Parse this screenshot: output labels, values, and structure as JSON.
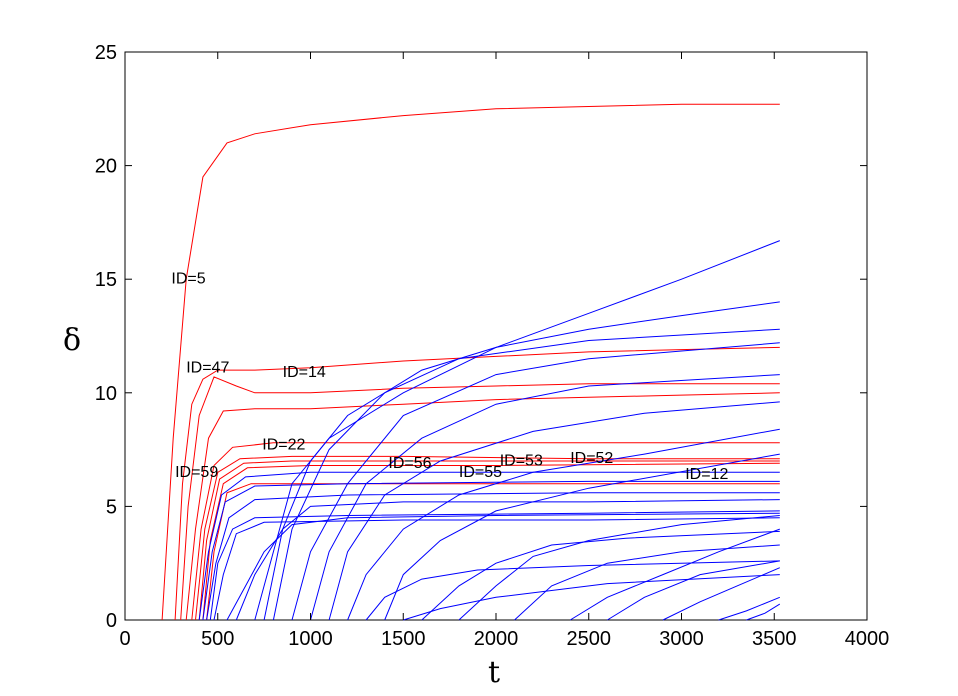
{
  "chart_data": {
    "type": "line",
    "xlabel": "t",
    "ylabel": "δ",
    "xlim": [
      0,
      4000
    ],
    "ylim": [
      0,
      25
    ],
    "xticks": [
      0,
      500,
      1000,
      1500,
      2000,
      2500,
      3000,
      3500,
      4000
    ],
    "yticks": [
      0,
      5,
      10,
      15,
      20,
      25
    ],
    "grid": false,
    "legend": "none",
    "colors": {
      "unstable": "#ff0000",
      "stable": "#0000ff"
    },
    "annotations": [
      {
        "text": "ID=5",
        "x": 250,
        "y": 14.8
      },
      {
        "text": "ID=47",
        "x": 330,
        "y": 10.9
      },
      {
        "text": "ID=14",
        "x": 850,
        "y": 10.7
      },
      {
        "text": "ID=22",
        "x": 740,
        "y": 7.5
      },
      {
        "text": "ID=59",
        "x": 270,
        "y": 6.3
      },
      {
        "text": "ID=56",
        "x": 1420,
        "y": 6.7
      },
      {
        "text": "ID=55",
        "x": 1800,
        "y": 6.3
      },
      {
        "text": "ID=53",
        "x": 2020,
        "y": 6.8
      },
      {
        "text": "ID=52",
        "x": 2400,
        "y": 6.9
      },
      {
        "text": "ID=12",
        "x": 3020,
        "y": 6.2
      }
    ],
    "series": [
      {
        "color": "red",
        "points": [
          [
            200,
            0
          ],
          [
            260,
            8
          ],
          [
            330,
            15
          ],
          [
            420,
            19.5
          ],
          [
            550,
            21
          ],
          [
            700,
            21.4
          ],
          [
            1000,
            21.8
          ],
          [
            1500,
            22.2
          ],
          [
            2000,
            22.5
          ],
          [
            2500,
            22.6
          ],
          [
            3000,
            22.7
          ],
          [
            3530,
            22.7
          ]
        ]
      },
      {
        "color": "red",
        "points": [
          [
            270,
            0
          ],
          [
            310,
            6
          ],
          [
            360,
            9.5
          ],
          [
            420,
            10.6
          ],
          [
            500,
            11
          ],
          [
            700,
            11
          ],
          [
            1000,
            11.1
          ],
          [
            1500,
            11.4
          ],
          [
            2000,
            11.6
          ],
          [
            2500,
            11.8
          ],
          [
            3000,
            11.9
          ],
          [
            3530,
            12
          ]
        ]
      },
      {
        "color": "red",
        "points": [
          [
            300,
            0
          ],
          [
            340,
            5
          ],
          [
            400,
            9
          ],
          [
            480,
            10.7
          ],
          [
            600,
            10.3
          ],
          [
            700,
            10
          ],
          [
            1000,
            10
          ],
          [
            1500,
            10.2
          ],
          [
            2000,
            10.3
          ],
          [
            2500,
            10.4
          ],
          [
            3000,
            10.4
          ],
          [
            3530,
            10.4
          ]
        ]
      },
      {
        "color": "red",
        "points": [
          [
            330,
            0
          ],
          [
            380,
            4
          ],
          [
            450,
            8
          ],
          [
            530,
            9.2
          ],
          [
            700,
            9.3
          ],
          [
            1000,
            9.3
          ],
          [
            1500,
            9.5
          ],
          [
            2000,
            9.7
          ],
          [
            2500,
            9.8
          ],
          [
            3000,
            9.9
          ],
          [
            3530,
            10
          ]
        ]
      },
      {
        "color": "red",
        "points": [
          [
            360,
            0
          ],
          [
            410,
            4
          ],
          [
            480,
            6.8
          ],
          [
            580,
            7.6
          ],
          [
            800,
            7.8
          ],
          [
            1500,
            7.8
          ],
          [
            2500,
            7.8
          ],
          [
            3530,
            7.8
          ]
        ]
      },
      {
        "color": "red",
        "points": [
          [
            380,
            0
          ],
          [
            430,
            4
          ],
          [
            500,
            6.5
          ],
          [
            620,
            7.1
          ],
          [
            900,
            7.2
          ],
          [
            1500,
            7.2
          ],
          [
            2500,
            7.1
          ],
          [
            3530,
            7.1
          ]
        ]
      },
      {
        "color": "red",
        "points": [
          [
            400,
            0
          ],
          [
            440,
            3.5
          ],
          [
            510,
            6.2
          ],
          [
            640,
            6.9
          ],
          [
            900,
            7
          ],
          [
            1500,
            7
          ],
          [
            2500,
            7
          ],
          [
            3530,
            7
          ]
        ]
      },
      {
        "color": "red",
        "points": [
          [
            420,
            0
          ],
          [
            460,
            3.5
          ],
          [
            530,
            6
          ],
          [
            660,
            6.7
          ],
          [
            1000,
            6.8
          ],
          [
            2000,
            6.8
          ],
          [
            3530,
            6.9
          ]
        ]
      },
      {
        "color": "red",
        "points": [
          [
            440,
            0
          ],
          [
            480,
            3
          ],
          [
            550,
            5.6
          ],
          [
            680,
            6
          ],
          [
            1000,
            6
          ],
          [
            2000,
            6
          ],
          [
            3530,
            6
          ]
        ]
      },
      {
        "color": "blue",
        "points": [
          [
            400,
            0
          ],
          [
            450,
            3
          ],
          [
            520,
            5.5
          ],
          [
            650,
            6.3
          ],
          [
            1000,
            6.5
          ],
          [
            2000,
            6.5
          ],
          [
            3530,
            6.5
          ]
        ]
      },
      {
        "color": "blue",
        "points": [
          [
            420,
            0
          ],
          [
            470,
            3
          ],
          [
            540,
            5.2
          ],
          [
            700,
            5.9
          ],
          [
            1200,
            6
          ],
          [
            2500,
            6.1
          ],
          [
            3530,
            6.1
          ]
        ]
      },
      {
        "color": "blue",
        "points": [
          [
            440,
            0
          ],
          [
            490,
            2.5
          ],
          [
            560,
            4.5
          ],
          [
            700,
            5.3
          ],
          [
            1200,
            5.5
          ],
          [
            2500,
            5.6
          ],
          [
            3530,
            5.6
          ]
        ]
      },
      {
        "color": "blue",
        "points": [
          [
            460,
            0
          ],
          [
            500,
            2.5
          ],
          [
            580,
            4
          ],
          [
            700,
            4.5
          ],
          [
            1200,
            4.6
          ],
          [
            2500,
            4.7
          ],
          [
            3530,
            4.8
          ]
        ]
      },
      {
        "color": "blue",
        "points": [
          [
            480,
            0
          ],
          [
            530,
            2
          ],
          [
            600,
            3.8
          ],
          [
            750,
            4.3
          ],
          [
            1500,
            4.4
          ],
          [
            2500,
            4.4
          ],
          [
            3530,
            4.5
          ]
        ]
      },
      {
        "color": "blue",
        "points": [
          [
            700,
            0
          ],
          [
            800,
            3
          ],
          [
            900,
            6
          ],
          [
            1100,
            8
          ],
          [
            1500,
            10
          ],
          [
            2000,
            12
          ],
          [
            2500,
            13.5
          ],
          [
            3000,
            15
          ],
          [
            3530,
            16.7
          ]
        ]
      },
      {
        "color": "blue",
        "points": [
          [
            750,
            0
          ],
          [
            850,
            4
          ],
          [
            1000,
            7
          ],
          [
            1200,
            9
          ],
          [
            1600,
            11
          ],
          [
            2000,
            12
          ],
          [
            2500,
            12.8
          ],
          [
            3000,
            13.4
          ],
          [
            3530,
            14
          ]
        ]
      },
      {
        "color": "blue",
        "points": [
          [
            800,
            0
          ],
          [
            900,
            4
          ],
          [
            1100,
            7.5
          ],
          [
            1400,
            10
          ],
          [
            1800,
            11.5
          ],
          [
            2500,
            12.3
          ],
          [
            3530,
            12.8
          ]
        ]
      },
      {
        "color": "blue",
        "points": [
          [
            900,
            0
          ],
          [
            1000,
            3
          ],
          [
            1200,
            6
          ],
          [
            1500,
            9
          ],
          [
            2000,
            10.8
          ],
          [
            2500,
            11.5
          ],
          [
            3530,
            12.2
          ]
        ]
      },
      {
        "color": "blue",
        "points": [
          [
            1000,
            0
          ],
          [
            1100,
            3
          ],
          [
            1300,
            6
          ],
          [
            1600,
            8
          ],
          [
            2000,
            9.5
          ],
          [
            2500,
            10.3
          ],
          [
            3530,
            10.8
          ]
        ]
      },
      {
        "color": "blue",
        "points": [
          [
            1100,
            0
          ],
          [
            1200,
            3
          ],
          [
            1400,
            5.5
          ],
          [
            1700,
            7
          ],
          [
            2200,
            8.3
          ],
          [
            2800,
            9.1
          ],
          [
            3530,
            9.6
          ]
        ]
      },
      {
        "color": "blue",
        "points": [
          [
            1200,
            0
          ],
          [
            1300,
            2
          ],
          [
            1500,
            4
          ],
          [
            1800,
            5.5
          ],
          [
            2200,
            6.5
          ],
          [
            2800,
            7.3
          ],
          [
            3530,
            8.4
          ]
        ]
      },
      {
        "color": "blue",
        "points": [
          [
            1400,
            0
          ],
          [
            1500,
            2
          ],
          [
            1700,
            3.5
          ],
          [
            2000,
            4.8
          ],
          [
            2500,
            5.8
          ],
          [
            3530,
            7.3
          ]
        ]
      },
      {
        "color": "blue",
        "points": [
          [
            1600,
            0
          ],
          [
            1800,
            1.5
          ],
          [
            2000,
            2.5
          ],
          [
            2300,
            3.3
          ],
          [
            2700,
            3.6
          ],
          [
            3530,
            3.9
          ]
        ]
      },
      {
        "color": "blue",
        "points": [
          [
            1800,
            0
          ],
          [
            2000,
            1.5
          ],
          [
            2200,
            2.8
          ],
          [
            2500,
            3.5
          ],
          [
            3000,
            4.2
          ],
          [
            3530,
            4.6
          ]
        ]
      },
      {
        "color": "blue",
        "points": [
          [
            2100,
            0
          ],
          [
            2300,
            1.5
          ],
          [
            2600,
            2.5
          ],
          [
            3000,
            3
          ],
          [
            3530,
            3.3
          ]
        ]
      },
      {
        "color": "blue",
        "points": [
          [
            2400,
            0
          ],
          [
            2600,
            1
          ],
          [
            2900,
            2
          ],
          [
            3200,
            3
          ],
          [
            3530,
            4
          ]
        ]
      },
      {
        "color": "blue",
        "points": [
          [
            2600,
            0
          ],
          [
            2800,
            1
          ],
          [
            3100,
            2
          ],
          [
            3530,
            2.6
          ]
        ]
      },
      {
        "color": "blue",
        "points": [
          [
            2900,
            0
          ],
          [
            3100,
            0.8
          ],
          [
            3300,
            1.5
          ],
          [
            3530,
            2.3
          ]
        ]
      },
      {
        "color": "blue",
        "points": [
          [
            3200,
            0
          ],
          [
            3350,
            0.4
          ],
          [
            3530,
            1
          ]
        ]
      },
      {
        "color": "blue",
        "points": [
          [
            3350,
            0
          ],
          [
            3450,
            0.3
          ],
          [
            3530,
            0.7
          ]
        ]
      },
      {
        "color": "blue",
        "points": [
          [
            550,
            0
          ],
          [
            650,
            1.5
          ],
          [
            750,
            3
          ],
          [
            900,
            4.2
          ],
          [
            1200,
            4.5
          ],
          [
            2000,
            4.6
          ],
          [
            3530,
            4.7
          ]
        ]
      },
      {
        "color": "blue",
        "points": [
          [
            600,
            0
          ],
          [
            700,
            2
          ],
          [
            850,
            4
          ],
          [
            1000,
            5
          ],
          [
            1500,
            5.2
          ],
          [
            2500,
            5.2
          ],
          [
            3530,
            5.3
          ]
        ]
      },
      {
        "color": "blue",
        "points": [
          [
            1300,
            0
          ],
          [
            1400,
            1
          ],
          [
            1600,
            1.8
          ],
          [
            1900,
            2.2
          ],
          [
            2500,
            2.4
          ],
          [
            3530,
            2.6
          ]
        ]
      },
      {
        "color": "blue",
        "points": [
          [
            1500,
            0
          ],
          [
            1700,
            0.5
          ],
          [
            2000,
            1
          ],
          [
            2600,
            1.6
          ],
          [
            3530,
            2
          ]
        ]
      }
    ]
  }
}
